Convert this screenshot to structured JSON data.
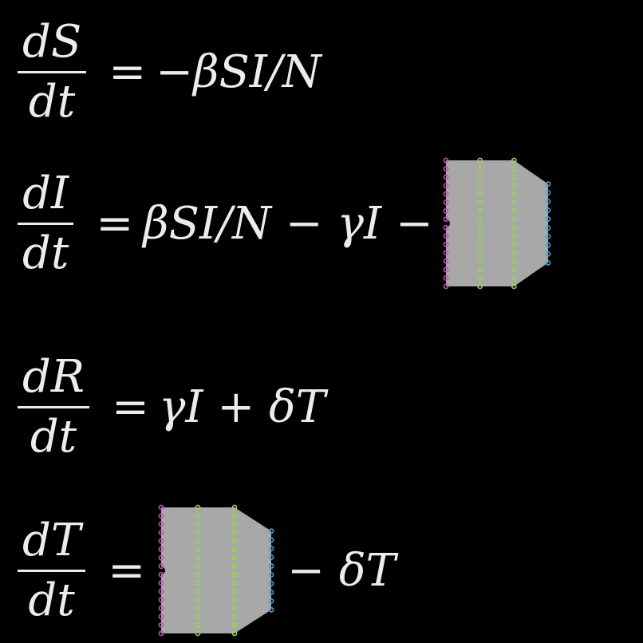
{
  "equations": [
    {
      "id": "dS",
      "numerator": "dS",
      "denominator": "dt",
      "equals": "=",
      "rhs": "−βSI/N",
      "has_network": false
    },
    {
      "id": "dI",
      "numerator": "dI",
      "denominator": "dt",
      "equals": "=",
      "rhs": "βSI/N − γI −",
      "has_network": true
    },
    {
      "id": "dR",
      "numerator": "dR",
      "denominator": "dt",
      "equals": "=",
      "rhs": "γI + δT",
      "has_network": false
    },
    {
      "id": "dT",
      "numerator": "dT",
      "denominator": "dt",
      "equals": "=",
      "rhs_after_network": "− δT",
      "has_network": true
    }
  ],
  "network": {
    "layers": [
      16,
      16,
      16,
      10
    ],
    "layer_colors": [
      "#c44fc0",
      "#9bd05a",
      "#9bd05a",
      "#4aa3d8"
    ],
    "fill_color": "#a8a8a8"
  }
}
